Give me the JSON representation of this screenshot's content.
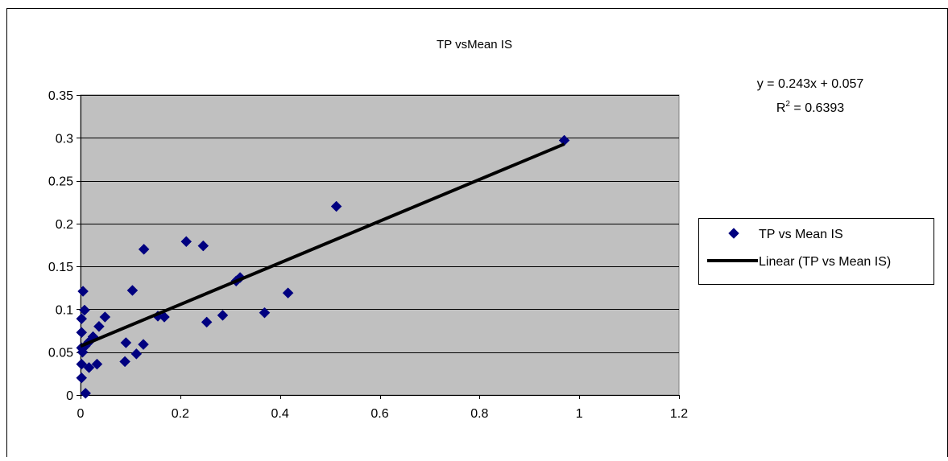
{
  "chart_data": {
    "type": "scatter",
    "title": "TP vsMean IS",
    "xlabel": "",
    "ylabel": "",
    "xlim": [
      0,
      1.2
    ],
    "ylim": [
      0,
      0.35
    ],
    "x_ticks": [
      "0",
      "0.2",
      "0.4",
      "0.6",
      "0.8",
      "1",
      "1.2"
    ],
    "y_ticks": [
      "0",
      "0.05",
      "0.1",
      "0.15",
      "0.2",
      "0.25",
      "0.3",
      "0.35"
    ],
    "grid": true,
    "plot_background": "#c0c0c0",
    "legend_position": "right",
    "series": [
      {
        "name": "TP vs Mean IS",
        "color": "#000080",
        "marker": "diamond",
        "points": [
          [
            0.97,
            0.297
          ],
          [
            0.513,
            0.22
          ],
          [
            0.212,
            0.179
          ],
          [
            0.246,
            0.174
          ],
          [
            0.127,
            0.17
          ],
          [
            0.104,
            0.122
          ],
          [
            0.005,
            0.121
          ],
          [
            0.416,
            0.119
          ],
          [
            0.32,
            0.137
          ],
          [
            0.312,
            0.133
          ],
          [
            0.008,
            0.099
          ],
          [
            0.369,
            0.096
          ],
          [
            0.285,
            0.093
          ],
          [
            0.155,
            0.092
          ],
          [
            0.168,
            0.091
          ],
          [
            0.049,
            0.091
          ],
          [
            0.002,
            0.089
          ],
          [
            0.253,
            0.085
          ],
          [
            0.037,
            0.08
          ],
          [
            0.002,
            0.073
          ],
          [
            0.025,
            0.068
          ],
          [
            0.017,
            0.062
          ],
          [
            0.091,
            0.061
          ],
          [
            0.126,
            0.059
          ],
          [
            0.009,
            0.057
          ],
          [
            0.002,
            0.055
          ],
          [
            0.004,
            0.05
          ],
          [
            0.112,
            0.048
          ],
          [
            0.089,
            0.039
          ],
          [
            0.002,
            0.036
          ],
          [
            0.033,
            0.036
          ],
          [
            0.017,
            0.032
          ],
          [
            0.002,
            0.02
          ],
          [
            0.01,
            0.002
          ]
        ]
      }
    ],
    "trendline": {
      "name": "Linear (TP vs Mean IS)",
      "color": "#000000",
      "slope": 0.243,
      "intercept": 0.057,
      "x_range": [
        0,
        0.97
      ],
      "equation": "y = 0.243x + 0.057",
      "r2_prefix": "R",
      "r2_superscript": "2",
      "r2_suffix": " = 0.6393"
    }
  }
}
